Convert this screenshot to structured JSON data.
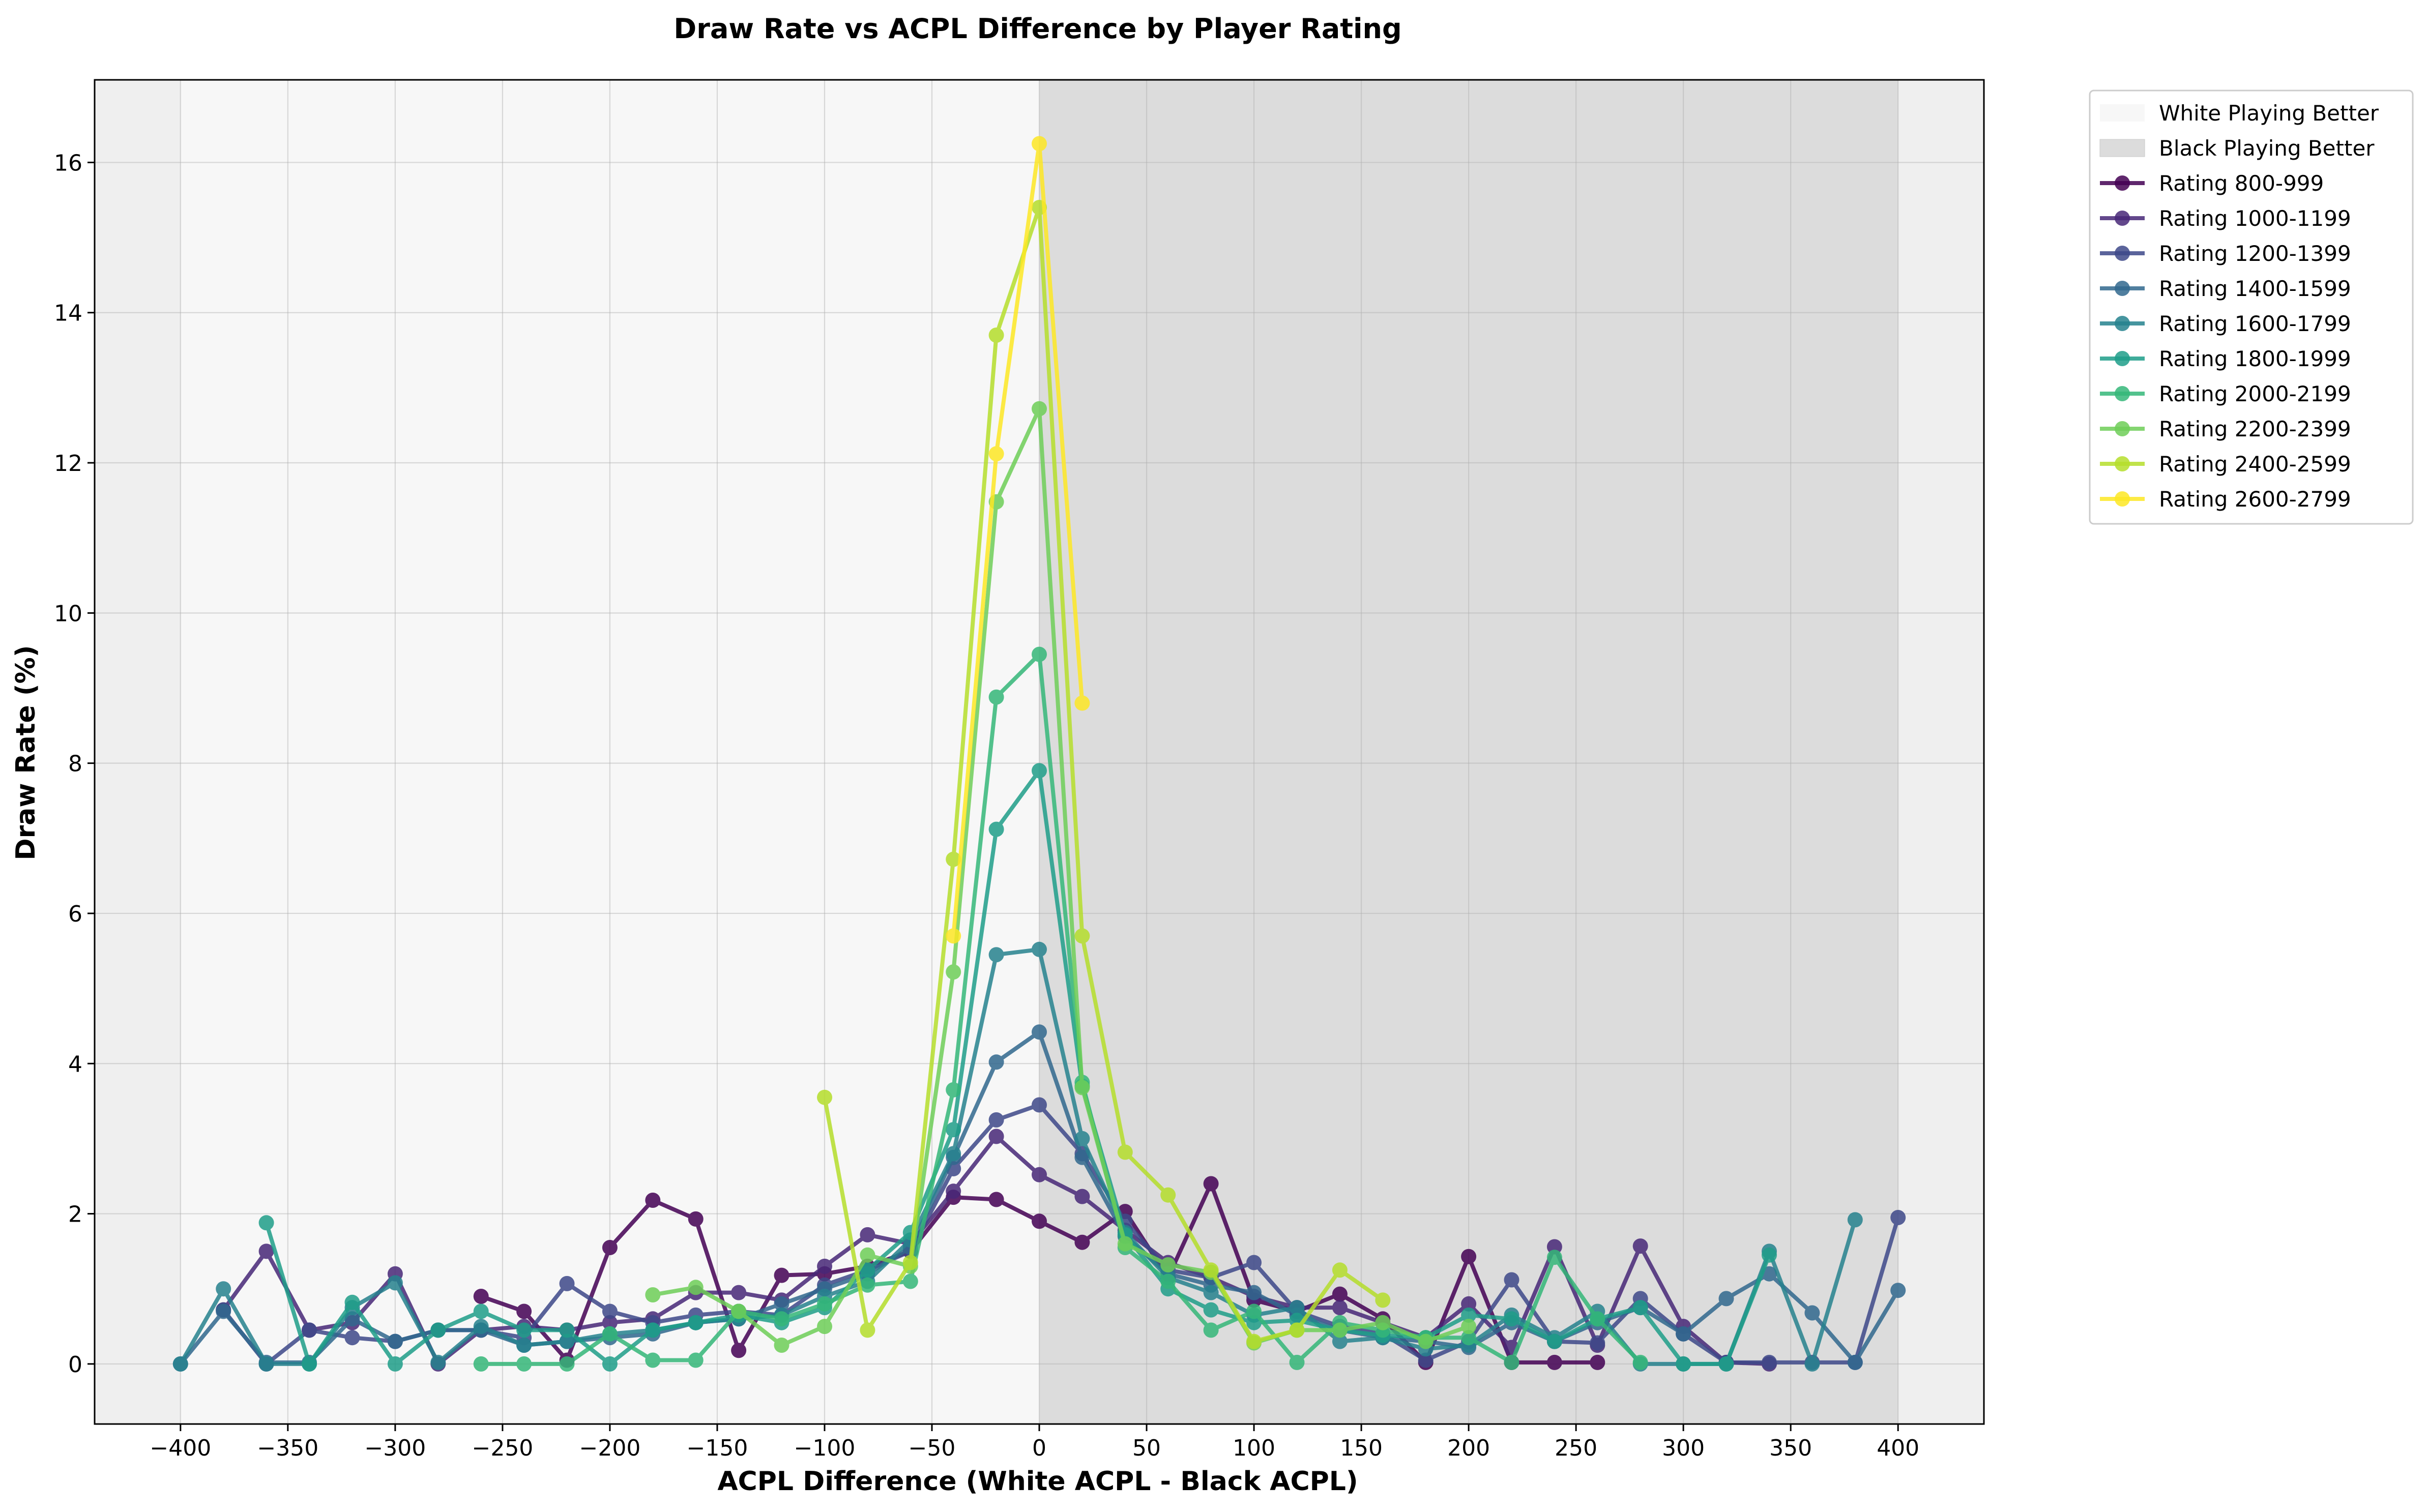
{
  "chart_data": {
    "type": "line",
    "title": "Draw Rate vs ACPL Difference by Player Rating",
    "xlabel": "ACPL Difference (White ACPL - Black ACPL)",
    "ylabel": "Draw Rate (%)",
    "xlim": [
      -440,
      440
    ],
    "ylim": [
      -0.8,
      17.1
    ],
    "xticks": [
      -400,
      -350,
      -300,
      -250,
      -200,
      -150,
      -100,
      -50,
      0,
      50,
      100,
      150,
      200,
      250,
      300,
      350,
      400
    ],
    "yticks": [
      0,
      2,
      4,
      6,
      8,
      10,
      12,
      14,
      16
    ],
    "grid": true,
    "legend_position": "outside-top-right",
    "regions": [
      {
        "label": "White Playing Better",
        "x_range": [
          -400,
          0
        ],
        "color": "#f7f7f7"
      },
      {
        "label": "Black Playing Better",
        "x_range": [
          0,
          400
        ],
        "color": "#dcdcdc"
      }
    ],
    "outer_background": "#efefef",
    "series": [
      {
        "name": "Rating 800-999",
        "color": "#440154",
        "points": [
          [
            -260,
            0.9
          ],
          [
            -240,
            0.7
          ],
          [
            -220,
            0.05
          ],
          [
            -200,
            1.55
          ],
          [
            -180,
            2.18
          ],
          [
            -160,
            1.93
          ],
          [
            -140,
            0.18
          ],
          [
            -120,
            1.18
          ],
          [
            -100,
            1.2
          ],
          [
            -80,
            1.3
          ],
          [
            -60,
            1.5
          ],
          [
            -40,
            2.22
          ],
          [
            -20,
            2.19
          ],
          [
            0,
            1.9
          ],
          [
            20,
            1.62
          ],
          [
            40,
            2.03
          ],
          [
            60,
            1.15
          ],
          [
            80,
            2.4
          ],
          [
            100,
            0.85
          ],
          [
            120,
            0.7
          ],
          [
            140,
            0.93
          ],
          [
            160,
            0.6
          ],
          [
            180,
            0.02
          ],
          [
            200,
            1.43
          ],
          [
            220,
            0.02
          ],
          [
            240,
            0.02
          ],
          [
            260,
            0.02
          ]
        ]
      },
      {
        "name": "Rating 1000-1199",
        "color": "#482878",
        "points": [
          [
            -380,
            0.72
          ],
          [
            -360,
            1.5
          ],
          [
            -340,
            0.45
          ],
          [
            -320,
            0.55
          ],
          [
            -300,
            1.2
          ],
          [
            -280,
            0.0
          ],
          [
            -260,
            0.45
          ],
          [
            -240,
            0.5
          ],
          [
            -220,
            0.45
          ],
          [
            -200,
            0.55
          ],
          [
            -180,
            0.6
          ],
          [
            -160,
            0.95
          ],
          [
            -140,
            0.95
          ],
          [
            -120,
            0.85
          ],
          [
            -100,
            1.3
          ],
          [
            -80,
            1.72
          ],
          [
            -60,
            1.6
          ],
          [
            -40,
            2.3
          ],
          [
            -20,
            3.03
          ],
          [
            0,
            2.52
          ],
          [
            20,
            2.23
          ],
          [
            40,
            1.78
          ],
          [
            60,
            1.35
          ],
          [
            80,
            1.15
          ],
          [
            100,
            0.9
          ],
          [
            120,
            0.75
          ],
          [
            140,
            0.75
          ],
          [
            160,
            0.55
          ],
          [
            180,
            0.35
          ],
          [
            200,
            0.8
          ],
          [
            220,
            0.22
          ],
          [
            240,
            1.56
          ],
          [
            260,
            0.25
          ],
          [
            280,
            1.57
          ],
          [
            300,
            0.5
          ],
          [
            320,
            0.02
          ],
          [
            340,
            0.0
          ]
        ]
      },
      {
        "name": "Rating 1200-1399",
        "color": "#3e4989",
        "points": [
          [
            -380,
            0.72
          ],
          [
            -360,
            0.0
          ],
          [
            -340,
            0.45
          ],
          [
            -320,
            0.35
          ],
          [
            -300,
            0.3
          ],
          [
            -280,
            0.45
          ],
          [
            -260,
            0.45
          ],
          [
            -240,
            0.35
          ],
          [
            -220,
            1.07
          ],
          [
            -200,
            0.7
          ],
          [
            -180,
            0.55
          ],
          [
            -160,
            0.65
          ],
          [
            -140,
            0.7
          ],
          [
            -120,
            0.65
          ],
          [
            -100,
            1.05
          ],
          [
            -80,
            1.25
          ],
          [
            -60,
            1.5
          ],
          [
            -40,
            2.6
          ],
          [
            -20,
            3.25
          ],
          [
            0,
            3.45
          ],
          [
            20,
            2.8
          ],
          [
            40,
            1.9
          ],
          [
            60,
            1.25
          ],
          [
            80,
            1.15
          ],
          [
            100,
            1.35
          ],
          [
            120,
            0.7
          ],
          [
            140,
            0.5
          ],
          [
            160,
            0.4
          ],
          [
            180,
            0.05
          ],
          [
            200,
            0.3
          ],
          [
            220,
            1.12
          ],
          [
            240,
            0.3
          ],
          [
            260,
            0.28
          ],
          [
            280,
            0.87
          ],
          [
            300,
            0.4
          ],
          [
            320,
            0.02
          ],
          [
            340,
            0.02
          ],
          [
            360,
            0.02
          ],
          [
            380,
            0.02
          ],
          [
            400,
            1.95
          ]
        ]
      },
      {
        "name": "Rating 1400-1599",
        "color": "#31688e",
        "points": [
          [
            -400,
            0.0
          ],
          [
            -380,
            0.7
          ],
          [
            -360,
            0.02
          ],
          [
            -340,
            0.02
          ],
          [
            -320,
            0.6
          ],
          [
            -300,
            0.3
          ],
          [
            -280,
            0.45
          ],
          [
            -260,
            0.45
          ],
          [
            -240,
            0.25
          ],
          [
            -220,
            0.3
          ],
          [
            -200,
            0.35
          ],
          [
            -180,
            0.4
          ],
          [
            -160,
            0.55
          ],
          [
            -140,
            0.6
          ],
          [
            -120,
            0.8
          ],
          [
            -100,
            1.0
          ],
          [
            -80,
            1.2
          ],
          [
            -60,
            1.55
          ],
          [
            -40,
            2.75
          ],
          [
            -20,
            4.02
          ],
          [
            0,
            4.42
          ],
          [
            20,
            2.75
          ],
          [
            40,
            1.7
          ],
          [
            60,
            1.2
          ],
          [
            80,
            1.05
          ],
          [
            100,
            0.95
          ],
          [
            120,
            0.65
          ],
          [
            140,
            0.45
          ],
          [
            160,
            0.35
          ],
          [
            180,
            0.3
          ],
          [
            200,
            0.22
          ],
          [
            220,
            0.55
          ],
          [
            240,
            0.3
          ],
          [
            260,
            0.55
          ],
          [
            280,
            0.75
          ],
          [
            300,
            0.4
          ],
          [
            320,
            0.87
          ],
          [
            340,
            1.2
          ],
          [
            360,
            0.68
          ],
          [
            380,
            0.02
          ],
          [
            400,
            0.98
          ]
        ]
      },
      {
        "name": "Rating 1600-1799",
        "color": "#26828e",
        "points": [
          [
            -400,
            0.0
          ],
          [
            -380,
            1.0
          ],
          [
            -360,
            0.0
          ],
          [
            -340,
            0.0
          ],
          [
            -320,
            0.75
          ],
          [
            -300,
            1.08
          ],
          [
            -280,
            0.02
          ],
          [
            -260,
            0.5
          ],
          [
            -240,
            0.25
          ],
          [
            -220,
            0.3
          ],
          [
            -200,
            0.4
          ],
          [
            -180,
            0.45
          ],
          [
            -160,
            0.55
          ],
          [
            -140,
            0.6
          ],
          [
            -120,
            0.65
          ],
          [
            -100,
            0.9
          ],
          [
            -80,
            1.1
          ],
          [
            -60,
            1.65
          ],
          [
            -40,
            2.8
          ],
          [
            -20,
            5.45
          ],
          [
            0,
            5.52
          ],
          [
            20,
            3.0
          ],
          [
            40,
            1.75
          ],
          [
            60,
            1.15
          ],
          [
            80,
            0.95
          ],
          [
            100,
            0.65
          ],
          [
            120,
            0.75
          ],
          [
            140,
            0.3
          ],
          [
            160,
            0.35
          ],
          [
            180,
            0.2
          ],
          [
            200,
            0.25
          ],
          [
            220,
            0.65
          ],
          [
            240,
            0.35
          ],
          [
            260,
            0.7
          ],
          [
            280,
            0.0
          ],
          [
            300,
            0.0
          ],
          [
            320,
            0.0
          ],
          [
            340,
            1.5
          ],
          [
            360,
            0.0
          ],
          [
            380,
            1.92
          ]
        ]
      },
      {
        "name": "Rating 1800-1999",
        "color": "#1f9e89",
        "points": [
          [
            -360,
            1.88
          ],
          [
            -340,
            0.0
          ],
          [
            -320,
            0.82
          ],
          [
            -300,
            0.0
          ],
          [
            -280,
            0.45
          ],
          [
            -260,
            0.7
          ],
          [
            -240,
            0.45
          ],
          [
            -220,
            0.45
          ],
          [
            -200,
            0.0
          ],
          [
            -180,
            0.45
          ],
          [
            -160,
            0.55
          ],
          [
            -140,
            0.65
          ],
          [
            -120,
            0.55
          ],
          [
            -100,
            0.75
          ],
          [
            -80,
            1.25
          ],
          [
            -60,
            1.75
          ],
          [
            -40,
            3.12
          ],
          [
            -20,
            7.12
          ],
          [
            0,
            7.9
          ],
          [
            20,
            3.7
          ],
          [
            40,
            1.72
          ],
          [
            60,
            1.0
          ],
          [
            80,
            0.72
          ],
          [
            100,
            0.55
          ],
          [
            120,
            0.58
          ],
          [
            140,
            0.45
          ],
          [
            160,
            0.38
          ],
          [
            180,
            0.35
          ],
          [
            200,
            0.65
          ],
          [
            220,
            0.6
          ],
          [
            240,
            0.3
          ],
          [
            260,
            0.6
          ],
          [
            280,
            0.75
          ],
          [
            300,
            0.0
          ],
          [
            320,
            0.0
          ],
          [
            340,
            1.45
          ]
        ]
      },
      {
        "name": "Rating 2000-2199",
        "color": "#35b779",
        "points": [
          [
            -260,
            0.0
          ],
          [
            -240,
            0.0
          ],
          [
            -220,
            0.0
          ],
          [
            -200,
            0.4
          ],
          [
            -180,
            0.05
          ],
          [
            -160,
            0.05
          ],
          [
            -140,
            0.7
          ],
          [
            -120,
            0.6
          ],
          [
            -100,
            0.8
          ],
          [
            -80,
            1.05
          ],
          [
            -60,
            1.1
          ],
          [
            -40,
            3.65
          ],
          [
            -20,
            8.88
          ],
          [
            0,
            9.45
          ],
          [
            20,
            3.75
          ],
          [
            40,
            1.55
          ],
          [
            60,
            1.1
          ],
          [
            80,
            0.45
          ],
          [
            100,
            0.7
          ],
          [
            120,
            0.02
          ],
          [
            140,
            0.55
          ],
          [
            160,
            0.45
          ],
          [
            180,
            0.35
          ],
          [
            200,
            0.35
          ],
          [
            220,
            0.02
          ],
          [
            240,
            1.42
          ],
          [
            260,
            0.6
          ],
          [
            280,
            0.02
          ]
        ]
      },
      {
        "name": "Rating 2200-2399",
        "color": "#6ece58",
        "points": [
          [
            -180,
            0.92
          ],
          [
            -160,
            1.02
          ],
          [
            -140,
            0.7
          ],
          [
            -120,
            0.25
          ],
          [
            -100,
            0.5
          ],
          [
            -80,
            1.45
          ],
          [
            -60,
            1.3
          ],
          [
            -40,
            5.22
          ],
          [
            -20,
            11.48
          ],
          [
            0,
            12.72
          ],
          [
            20,
            3.68
          ],
          [
            40,
            1.6
          ],
          [
            60,
            1.32
          ],
          [
            80,
            1.22
          ],
          [
            100,
            0.28
          ],
          [
            120,
            0.45
          ],
          [
            140,
            0.45
          ],
          [
            160,
            0.55
          ],
          [
            180,
            0.3
          ],
          [
            200,
            0.5
          ]
        ]
      },
      {
        "name": "Rating 2400-2599",
        "color": "#b5de2b",
        "points": [
          [
            -100,
            3.55
          ],
          [
            -80,
            0.45
          ],
          [
            -60,
            1.35
          ],
          [
            -40,
            6.72
          ],
          [
            -20,
            13.7
          ],
          [
            0,
            15.4
          ],
          [
            20,
            5.7
          ],
          [
            40,
            2.82
          ],
          [
            60,
            2.25
          ],
          [
            80,
            1.25
          ],
          [
            100,
            0.3
          ],
          [
            120,
            0.45
          ],
          [
            140,
            1.25
          ],
          [
            160,
            0.85
          ]
        ]
      },
      {
        "name": "Rating 2600-2799",
        "color": "#fde725",
        "points": [
          [
            -40,
            5.7
          ],
          [
            -20,
            12.12
          ],
          [
            0,
            16.25
          ],
          [
            20,
            8.8
          ]
        ]
      }
    ]
  }
}
